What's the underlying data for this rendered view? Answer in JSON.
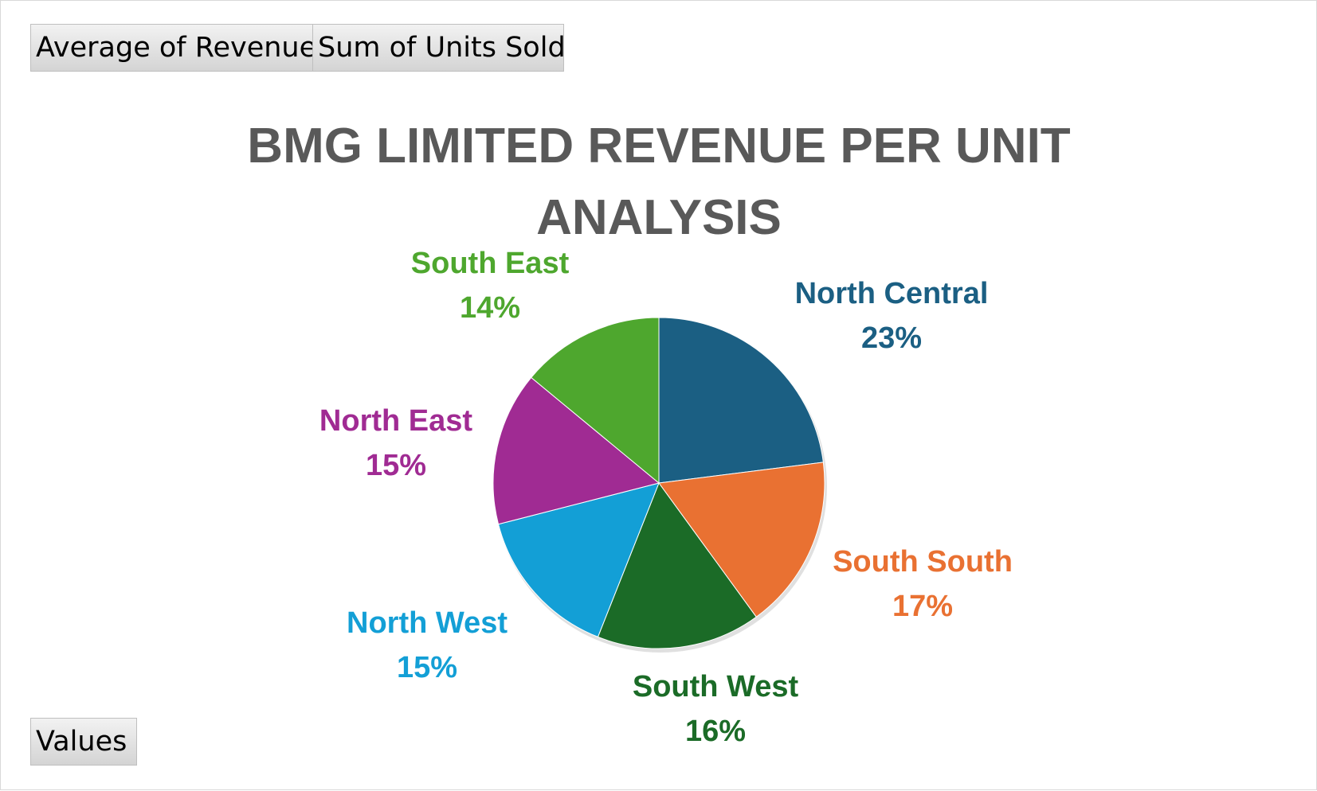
{
  "field_buttons": {
    "average_revenue": "Average  of Revenue",
    "sum_units_sold": "Sum of Units Sold",
    "values": "Values"
  },
  "chart_data": {
    "type": "pie",
    "title": "BMG LIMITED REVENUE PER UNIT ANALYSIS",
    "slices": [
      {
        "name": "North Central",
        "value": 23,
        "label": "23%",
        "color": "#1b5f83"
      },
      {
        "name": "South South",
        "value": 17,
        "label": "17%",
        "color": "#e97132"
      },
      {
        "name": "South West",
        "value": 16,
        "label": "16%",
        "color": "#1b6b27"
      },
      {
        "name": "North West",
        "value": 15,
        "label": "15%",
        "color": "#139fd6"
      },
      {
        "name": "North East",
        "value": 15,
        "label": "15%",
        "color": "#a02b93"
      },
      {
        "name": "South East",
        "value": 14,
        "label": "14%",
        "color": "#4ea72e"
      }
    ]
  }
}
